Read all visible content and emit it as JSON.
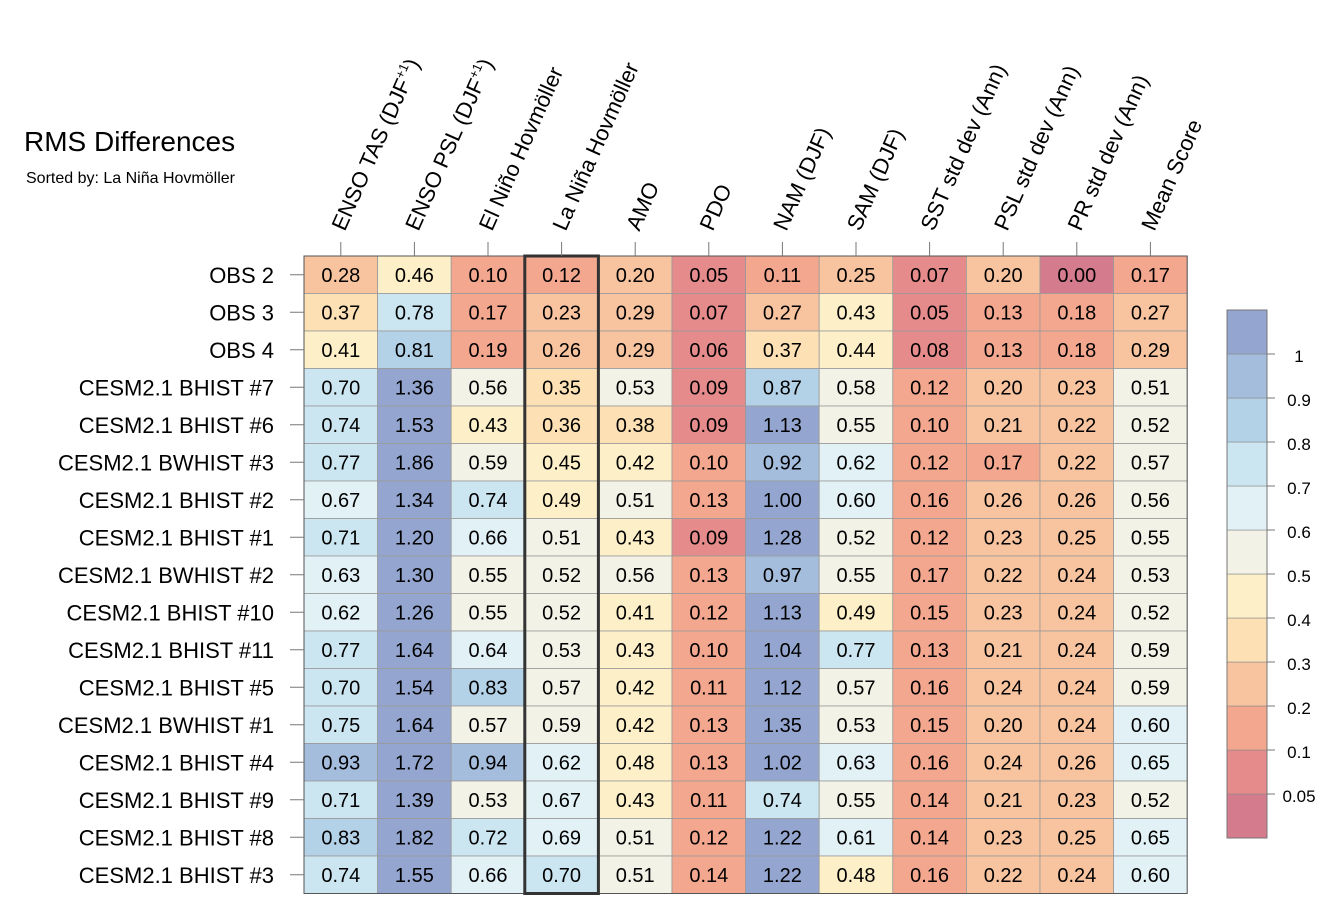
{
  "chart_data": {
    "type": "heatmap",
    "title": "RMS Differences",
    "subtitle": "Sorted by: La Niña Hovmöller",
    "highlighted_column": "La Niña Hovmöller",
    "columns": [
      {
        "label": "ENSO TAS (DJF",
        "sup": "+1",
        "suffix": ")"
      },
      {
        "label": "ENSO PSL (DJF",
        "sup": "+1",
        "suffix": ")"
      },
      {
        "label": "El Niño Hovmöller",
        "sup": "",
        "suffix": ""
      },
      {
        "label": "La Niña Hovmöller",
        "sup": "",
        "suffix": ""
      },
      {
        "label": "AMO",
        "sup": "",
        "suffix": ""
      },
      {
        "label": "PDO",
        "sup": "",
        "suffix": ""
      },
      {
        "label": "NAM (DJF)",
        "sup": "",
        "suffix": ""
      },
      {
        "label": "SAM (DJF)",
        "sup": "",
        "suffix": ""
      },
      {
        "label": "SST std dev (Ann)",
        "sup": "",
        "suffix": ""
      },
      {
        "label": "PSL std dev (Ann)",
        "sup": "",
        "suffix": ""
      },
      {
        "label": "PR std dev (Ann)",
        "sup": "",
        "suffix": ""
      },
      {
        "label": "Mean Score",
        "sup": "",
        "suffix": ""
      }
    ],
    "rows": [
      "OBS 2",
      "OBS 3",
      "OBS 4",
      "CESM2.1 BHIST #7",
      "CESM2.1 BHIST #6",
      "CESM2.1 BWHIST #3",
      "CESM2.1 BHIST #2",
      "CESM2.1 BHIST #1",
      "CESM2.1 BWHIST #2",
      "CESM2.1 BHIST #10",
      "CESM2.1 BHIST #11",
      "CESM2.1 BHIST #5",
      "CESM2.1 BWHIST #1",
      "CESM2.1 BHIST #4",
      "CESM2.1 BHIST #9",
      "CESM2.1 BHIST #8",
      "CESM2.1 BHIST #3"
    ],
    "values": [
      [
        "0.28",
        "0.46",
        "0.10",
        "0.12",
        "0.20",
        "0.05",
        "0.11",
        "0.25",
        "0.07",
        "0.20",
        "0.00",
        "0.17"
      ],
      [
        "0.37",
        "0.78",
        "0.17",
        "0.23",
        "0.29",
        "0.07",
        "0.27",
        "0.43",
        "0.05",
        "0.13",
        "0.18",
        "0.27"
      ],
      [
        "0.41",
        "0.81",
        "0.19",
        "0.26",
        "0.29",
        "0.06",
        "0.37",
        "0.44",
        "0.08",
        "0.13",
        "0.18",
        "0.29"
      ],
      [
        "0.70",
        "1.36",
        "0.56",
        "0.35",
        "0.53",
        "0.09",
        "0.87",
        "0.58",
        "0.12",
        "0.20",
        "0.23",
        "0.51"
      ],
      [
        "0.74",
        "1.53",
        "0.43",
        "0.36",
        "0.38",
        "0.09",
        "1.13",
        "0.55",
        "0.10",
        "0.21",
        "0.22",
        "0.52"
      ],
      [
        "0.77",
        "1.86",
        "0.59",
        "0.45",
        "0.42",
        "0.10",
        "0.92",
        "0.62",
        "0.12",
        "0.17",
        "0.22",
        "0.57"
      ],
      [
        "0.67",
        "1.34",
        "0.74",
        "0.49",
        "0.51",
        "0.13",
        "1.00",
        "0.60",
        "0.16",
        "0.26",
        "0.26",
        "0.56"
      ],
      [
        "0.71",
        "1.20",
        "0.66",
        "0.51",
        "0.43",
        "0.09",
        "1.28",
        "0.52",
        "0.12",
        "0.23",
        "0.25",
        "0.55"
      ],
      [
        "0.63",
        "1.30",
        "0.55",
        "0.52",
        "0.56",
        "0.13",
        "0.97",
        "0.55",
        "0.17",
        "0.22",
        "0.24",
        "0.53"
      ],
      [
        "0.62",
        "1.26",
        "0.55",
        "0.52",
        "0.41",
        "0.12",
        "1.13",
        "0.49",
        "0.15",
        "0.23",
        "0.24",
        "0.52"
      ],
      [
        "0.77",
        "1.64",
        "0.64",
        "0.53",
        "0.43",
        "0.10",
        "1.04",
        "0.77",
        "0.13",
        "0.21",
        "0.24",
        "0.59"
      ],
      [
        "0.70",
        "1.54",
        "0.83",
        "0.57",
        "0.42",
        "0.11",
        "1.12",
        "0.57",
        "0.16",
        "0.24",
        "0.24",
        "0.59"
      ],
      [
        "0.75",
        "1.64",
        "0.57",
        "0.59",
        "0.42",
        "0.13",
        "1.35",
        "0.53",
        "0.15",
        "0.20",
        "0.24",
        "0.60"
      ],
      [
        "0.93",
        "1.72",
        "0.94",
        "0.62",
        "0.48",
        "0.13",
        "1.02",
        "0.63",
        "0.16",
        "0.24",
        "0.26",
        "0.65"
      ],
      [
        "0.71",
        "1.39",
        "0.53",
        "0.67",
        "0.43",
        "0.11",
        "0.74",
        "0.55",
        "0.14",
        "0.21",
        "0.23",
        "0.52"
      ],
      [
        "0.83",
        "1.82",
        "0.72",
        "0.69",
        "0.51",
        "0.12",
        "1.22",
        "0.61",
        "0.14",
        "0.23",
        "0.25",
        "0.65"
      ],
      [
        "0.74",
        "1.55",
        "0.66",
        "0.70",
        "0.51",
        "0.14",
        "1.22",
        "0.48",
        "0.16",
        "0.22",
        "0.24",
        "0.60"
      ]
    ],
    "colorbar": {
      "levels": [
        0.05,
        0.1,
        0.2,
        0.3,
        0.4,
        0.5,
        0.6,
        0.7,
        0.8,
        0.9,
        1
      ],
      "tick_labels": [
        "0.05",
        "0.1",
        "0.2",
        "0.3",
        "0.4",
        "0.5",
        "0.6",
        "0.7",
        "0.8",
        "0.9",
        "1"
      ],
      "colors_bottom_to_top": [
        "#d57b8e",
        "#e58b8b",
        "#f3a78e",
        "#f8c49f",
        "#fde0b4",
        "#fdf0c8",
        "#f3f2e6",
        "#e2f1f6",
        "#cce6f1",
        "#b3d2e7",
        "#a4bddd",
        "#94a6d0"
      ]
    }
  }
}
